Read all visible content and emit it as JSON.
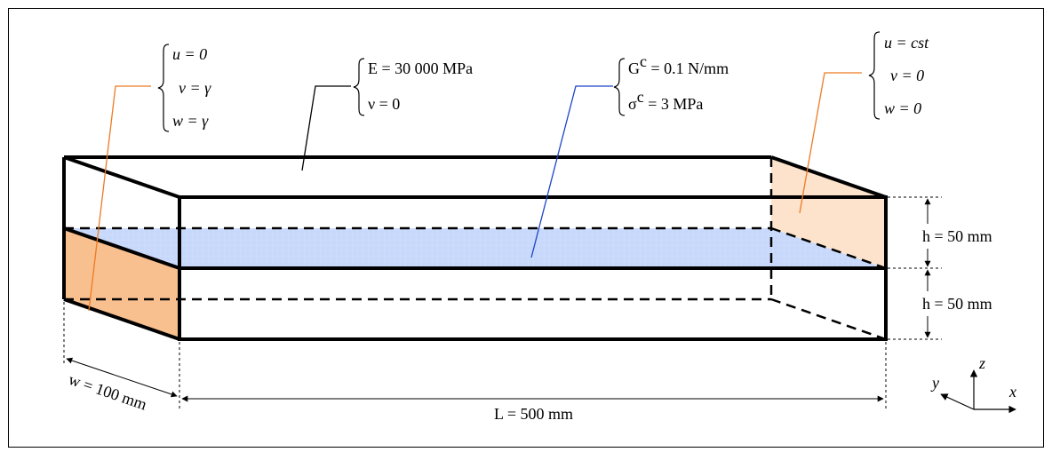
{
  "colors": {
    "frame": "#000000",
    "orange_face": "#f8c08f",
    "light_orange_face": "#fde3cc",
    "interface_fill": "#c7d8fb",
    "orange_leader": "#ee7a23",
    "blue_leader": "#1b44c8"
  },
  "left_bc": {
    "u": "u = 0",
    "v": "v = γ",
    "w": "w = γ"
  },
  "material": {
    "E": "E = 30 000  MPa",
    "nu": "ν = 0"
  },
  "interface": {
    "G_prefix": "G",
    "G_sup": "c",
    "G_suffix": " = 0.1  N/mm",
    "sigma_prefix": "σ",
    "sigma_sup": "c",
    "sigma_suffix": " = 3  MPa"
  },
  "right_bc": {
    "u": "u = cst",
    "v": "v = 0",
    "w": "w = 0"
  },
  "dimensions": {
    "h_upper": "h = 50 mm",
    "h_lower": "h = 50 mm",
    "width": "w = 100 mm",
    "length": "L = 500 mm"
  },
  "axes": {
    "x": "x",
    "y": "y",
    "z": "z"
  }
}
